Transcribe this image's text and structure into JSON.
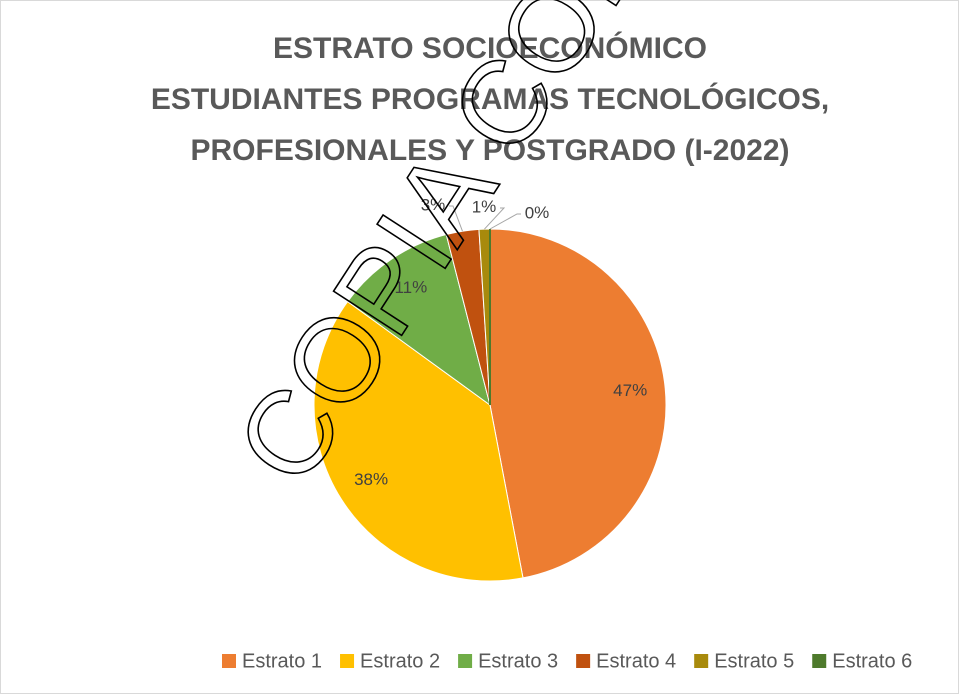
{
  "chart_data": {
    "type": "pie",
    "title": [
      "ESTRATO SOCIOECONÓMICO",
      "ESTUDIANTES PROGRAMAS TECNOLÓGICOS,",
      "PROFESIONALES Y POSTGRADO (I-2022)"
    ],
    "categories": [
      "Estrato 1",
      "Estrato 2",
      "Estrato 3",
      "Estrato 4",
      "Estrato 5",
      "Estrato 6"
    ],
    "values": [
      47,
      38,
      11,
      3,
      1,
      0
    ],
    "colors": [
      "#ED7D31",
      "#FFC000",
      "#70AD47",
      "#C0510F",
      "#A88A0C",
      "#4E7A2C"
    ],
    "legend": "bottom",
    "watermark": "COPIA CONT"
  }
}
